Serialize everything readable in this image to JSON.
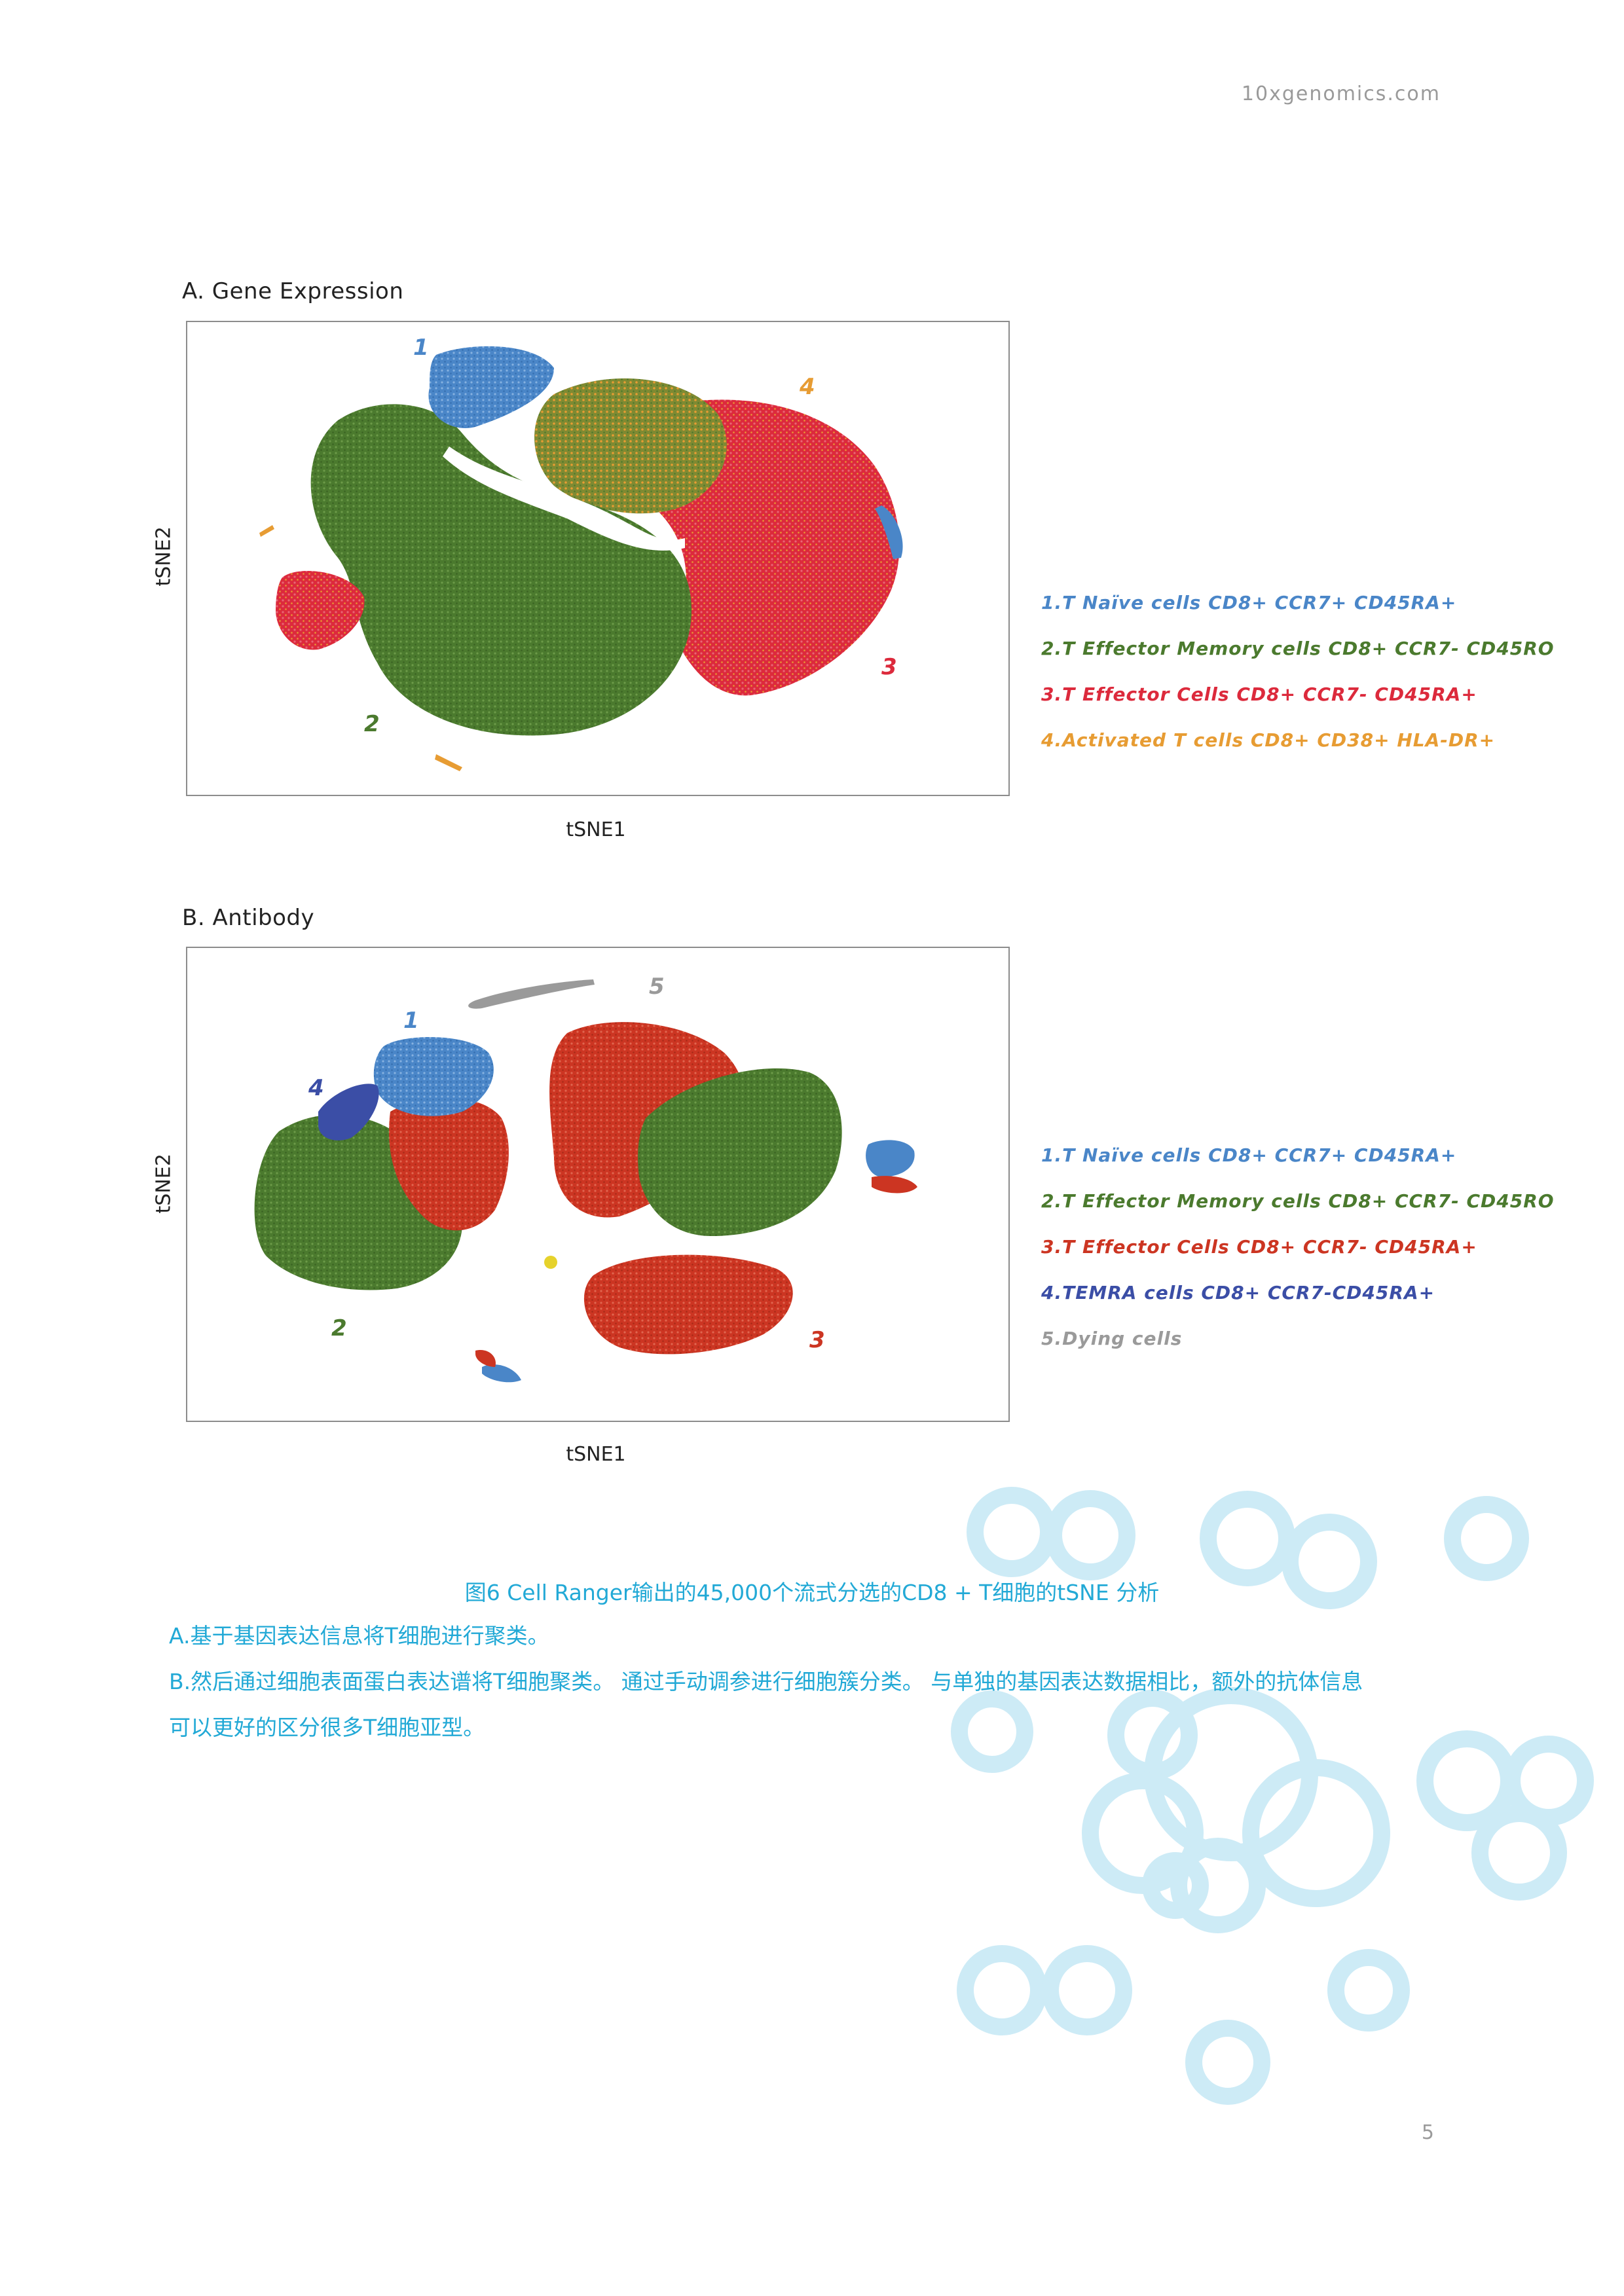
{
  "header": {
    "site": "10xgenomics.com"
  },
  "colors": {
    "naive": "#4a86c8",
    "effector_memory": "#4b7a2e",
    "effector_ga": "#dc2a3c",
    "effector_ab": "#cc3522",
    "activated": "#e79c33",
    "temra": "#3b4ea6",
    "dying": "#9a9a9a",
    "caption": "#22a9d6",
    "bubble": "#cdebf6"
  },
  "panelA": {
    "title": "A.  Gene Expression",
    "x_label": "tSNE1",
    "y_label": "tSNE2",
    "cluster_labels": [
      "1",
      "2",
      "3",
      "4"
    ],
    "legend": [
      "1.T Naïve cells  CD8+ CCR7+ CD45RA+",
      "2.T Effector Memory cells  CD8+ CCR7- CD45RO",
      "3.T Effector Cells  CD8+ CCR7- CD45RA+",
      "4.Activated T cells  CD8+ CD38+ HLA-DR+"
    ]
  },
  "panelB": {
    "title": "B.  Antibody",
    "x_label": "tSNE1",
    "y_label": "tSNE2",
    "cluster_labels": [
      "1",
      "2",
      "3",
      "4",
      "5"
    ],
    "legend": [
      "1.T Naïve cells  CD8+ CCR7+ CD45RA+",
      "2.T Effector Memory cells  CD8+ CCR7- CD45RO",
      "3.T Effector Cells  CD8+ CCR7- CD45RA+",
      "4.TEMRA cells  CD8+ CCR7-CD45RA+",
      "5.Dying cells"
    ]
  },
  "caption": {
    "title": "图6  Cell Ranger输出的45,000个流式分选的CD8 + T细胞的tSNE 分析",
    "line_a": "A.基于基因表达信息将T细胞进行聚类。",
    "line_b1": "B.然后通过细胞表面蛋白表达谱将T细胞聚类。 通过手动调参进行细胞簇分类。 与单独的基因表达数据相比，额外的抗体信息",
    "line_b2": "可以更好的区分很多T细胞亚型。"
  },
  "footer": {
    "page_number": "5"
  }
}
